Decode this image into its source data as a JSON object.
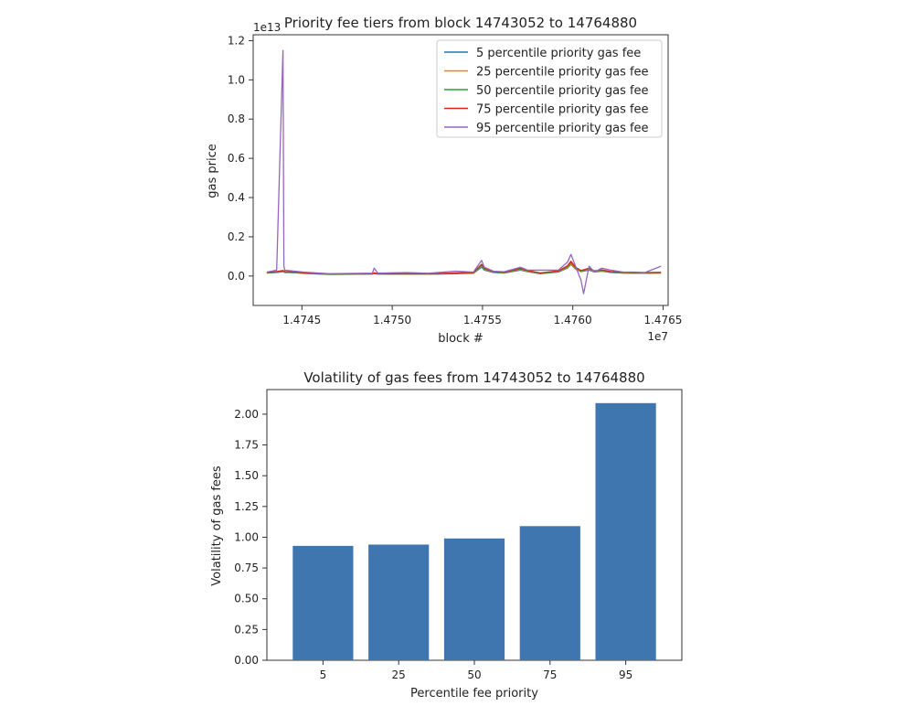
{
  "chart_data": [
    {
      "type": "line",
      "title": "Priority fee tiers from block 14743052 to 14764880",
      "xlabel": "block #",
      "ylabel": "gas price",
      "x_offset_label": "1e7",
      "y_offset_label": "1e13",
      "xlim": [
        14743052,
        14764880
      ],
      "ylim": [
        -0.15,
        1.2
      ],
      "xticks": [
        1.4745,
        1.475,
        1.4755,
        1.476,
        1.4765
      ],
      "xtick_labels": [
        "1.4745",
        "1.4750",
        "1.4755",
        "1.4760",
        "1.4765"
      ],
      "yticks": [
        0.0,
        0.2,
        0.4,
        0.6,
        0.8,
        1.0,
        1.2
      ],
      "ytick_labels": [
        "0.0",
        "0.2",
        "0.4",
        "0.6",
        "0.8",
        "1.0",
        "1.2"
      ],
      "legend_position": "top-right",
      "x": [
        14743052,
        14743600,
        14743950,
        14744000,
        14744050,
        14744600,
        14745100,
        14746500,
        14748900,
        14749000,
        14749200,
        14750800,
        14752000,
        14753500,
        14754500,
        14754950,
        14755100,
        14755600,
        14756200,
        14757100,
        14757500,
        14758200,
        14759200,
        14759700,
        14759900,
        14760150,
        14760450,
        14760600,
        14760900,
        14761200,
        14761600,
        14762100,
        14762800,
        14763400,
        14764000,
        14764880
      ],
      "series": [
        {
          "name": "5 percentile priority gas fee",
          "color": "#1f77b4",
          "values": [
            0.015,
            0.018,
            0.022,
            0.02,
            0.018,
            0.017,
            0.013,
            0.008,
            0.01,
            0.012,
            0.01,
            0.009,
            0.009,
            0.012,
            0.014,
            0.045,
            0.03,
            0.018,
            0.015,
            0.03,
            0.022,
            0.012,
            0.02,
            0.04,
            0.06,
            0.035,
            0.022,
            0.025,
            0.03,
            0.02,
            0.025,
            0.018,
            0.015,
            0.014,
            0.014,
            0.015
          ]
        },
        {
          "name": "25 percentile priority gas fee",
          "color": "#ff7f0e",
          "values": [
            0.016,
            0.02,
            0.024,
            0.022,
            0.02,
            0.018,
            0.014,
            0.009,
            0.011,
            0.013,
            0.011,
            0.01,
            0.01,
            0.013,
            0.015,
            0.05,
            0.033,
            0.02,
            0.016,
            0.033,
            0.024,
            0.013,
            0.022,
            0.044,
            0.065,
            0.038,
            0.024,
            0.027,
            0.033,
            0.022,
            0.027,
            0.02,
            0.016,
            0.015,
            0.015,
            0.016
          ]
        },
        {
          "name": "50 percentile priority gas fee",
          "color": "#2ca02c",
          "values": [
            0.017,
            0.021,
            0.026,
            0.024,
            0.021,
            0.019,
            0.015,
            0.01,
            0.012,
            0.014,
            0.012,
            0.011,
            0.011,
            0.014,
            0.016,
            0.055,
            0.036,
            0.021,
            0.017,
            0.036,
            0.026,
            0.014,
            0.024,
            0.048,
            0.07,
            0.041,
            0.026,
            0.029,
            0.036,
            0.024,
            0.029,
            0.021,
            0.017,
            0.016,
            0.016,
            0.017
          ]
        },
        {
          "name": "75 percentile priority gas fee",
          "color": "#d62728",
          "values": [
            0.018,
            0.023,
            0.028,
            0.026,
            0.023,
            0.021,
            0.016,
            0.011,
            0.013,
            0.016,
            0.013,
            0.012,
            0.012,
            0.016,
            0.018,
            0.06,
            0.04,
            0.023,
            0.019,
            0.04,
            0.028,
            0.016,
            0.026,
            0.052,
            0.075,
            0.045,
            0.028,
            0.032,
            0.04,
            0.026,
            0.032,
            0.023,
            0.019,
            0.018,
            0.018,
            0.019
          ]
        },
        {
          "name": "95 percentile priority gas fee",
          "color": "#9467bd",
          "values": [
            0.02,
            0.03,
            1.15,
            0.05,
            0.03,
            0.025,
            0.02,
            0.012,
            0.015,
            0.04,
            0.015,
            0.018,
            0.014,
            0.025,
            0.02,
            0.08,
            0.045,
            0.025,
            0.022,
            0.045,
            0.03,
            0.03,
            0.03,
            0.07,
            0.11,
            0.05,
            -0.02,
            -0.09,
            0.05,
            0.02,
            0.04,
            0.03,
            0.02,
            0.02,
            0.018,
            0.05
          ]
        }
      ]
    },
    {
      "type": "bar",
      "title": "Volatility of gas fees from 14743052 to 14764880",
      "xlabel": "Percentile fee priority",
      "ylabel": "Volatility of gas fees",
      "categories": [
        "5",
        "25",
        "50",
        "75",
        "95"
      ],
      "values": [
        0.93,
        0.94,
        0.99,
        1.09,
        2.09
      ],
      "ylim": [
        0,
        2.2
      ],
      "yticks": [
        0.0,
        0.25,
        0.5,
        0.75,
        1.0,
        1.25,
        1.5,
        1.75,
        2.0
      ],
      "ytick_labels": [
        "0.00",
        "0.25",
        "0.50",
        "0.75",
        "1.00",
        "1.25",
        "1.50",
        "1.75",
        "2.00"
      ],
      "bar_color": "#3f76b0"
    }
  ]
}
